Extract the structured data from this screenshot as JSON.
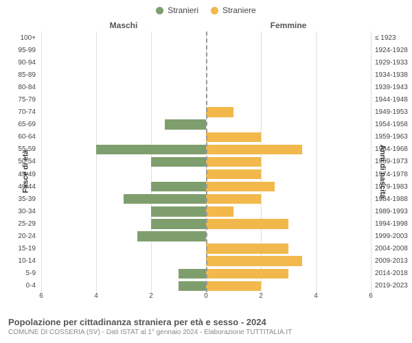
{
  "legend": {
    "male": {
      "label": "Stranieri",
      "color": "#7f9e6e"
    },
    "female": {
      "label": "Straniere",
      "color": "#f2b84b"
    }
  },
  "column_headers": {
    "left": "Maschi",
    "right": "Femmine"
  },
  "axis_titles": {
    "left": "Fasce di età",
    "right": "Anni di nascita"
  },
  "chart": {
    "type": "population-pyramid",
    "x_max": 6,
    "x_ticks": [
      6,
      4,
      2,
      0,
      2,
      4,
      6
    ],
    "grid_positions_pct": [
      0,
      16.67,
      33.33,
      50,
      66.67,
      83.33,
      100
    ],
    "background": "#ffffff",
    "grid_color": "#dddddd",
    "center_line_color": "#999999",
    "rows": [
      {
        "age": "100+",
        "birth": "≤ 1923",
        "m": 0,
        "f": 0
      },
      {
        "age": "95-99",
        "birth": "1924-1928",
        "m": 0,
        "f": 0
      },
      {
        "age": "90-94",
        "birth": "1929-1933",
        "m": 0,
        "f": 0
      },
      {
        "age": "85-89",
        "birth": "1934-1938",
        "m": 0,
        "f": 0
      },
      {
        "age": "80-84",
        "birth": "1939-1943",
        "m": 0,
        "f": 0
      },
      {
        "age": "75-79",
        "birth": "1944-1948",
        "m": 0,
        "f": 0
      },
      {
        "age": "70-74",
        "birth": "1949-1953",
        "m": 0,
        "f": 1
      },
      {
        "age": "65-69",
        "birth": "1954-1958",
        "m": 1.5,
        "f": 0
      },
      {
        "age": "60-64",
        "birth": "1959-1963",
        "m": 0,
        "f": 2
      },
      {
        "age": "55-59",
        "birth": "1964-1968",
        "m": 4,
        "f": 3.5
      },
      {
        "age": "50-54",
        "birth": "1969-1973",
        "m": 2,
        "f": 2
      },
      {
        "age": "45-49",
        "birth": "1974-1978",
        "m": 0,
        "f": 2
      },
      {
        "age": "40-44",
        "birth": "1979-1983",
        "m": 2,
        "f": 2.5
      },
      {
        "age": "35-39",
        "birth": "1984-1988",
        "m": 3,
        "f": 2
      },
      {
        "age": "30-34",
        "birth": "1989-1993",
        "m": 2,
        "f": 1
      },
      {
        "age": "25-29",
        "birth": "1994-1998",
        "m": 2,
        "f": 3
      },
      {
        "age": "20-24",
        "birth": "1999-2003",
        "m": 2.5,
        "f": 0
      },
      {
        "age": "15-19",
        "birth": "2004-2008",
        "m": 0,
        "f": 3
      },
      {
        "age": "10-14",
        "birth": "2009-2013",
        "m": 0,
        "f": 3.5
      },
      {
        "age": "5-9",
        "birth": "2014-2018",
        "m": 1,
        "f": 3
      },
      {
        "age": "0-4",
        "birth": "2019-2023",
        "m": 1,
        "f": 2
      }
    ]
  },
  "footer": {
    "title": "Popolazione per cittadinanza straniera per età e sesso - 2024",
    "subtitle": "COMUNE DI COSSERIA (SV) - Dati ISTAT al 1° gennaio 2024 - Elaborazione TUTTITALIA.IT"
  }
}
